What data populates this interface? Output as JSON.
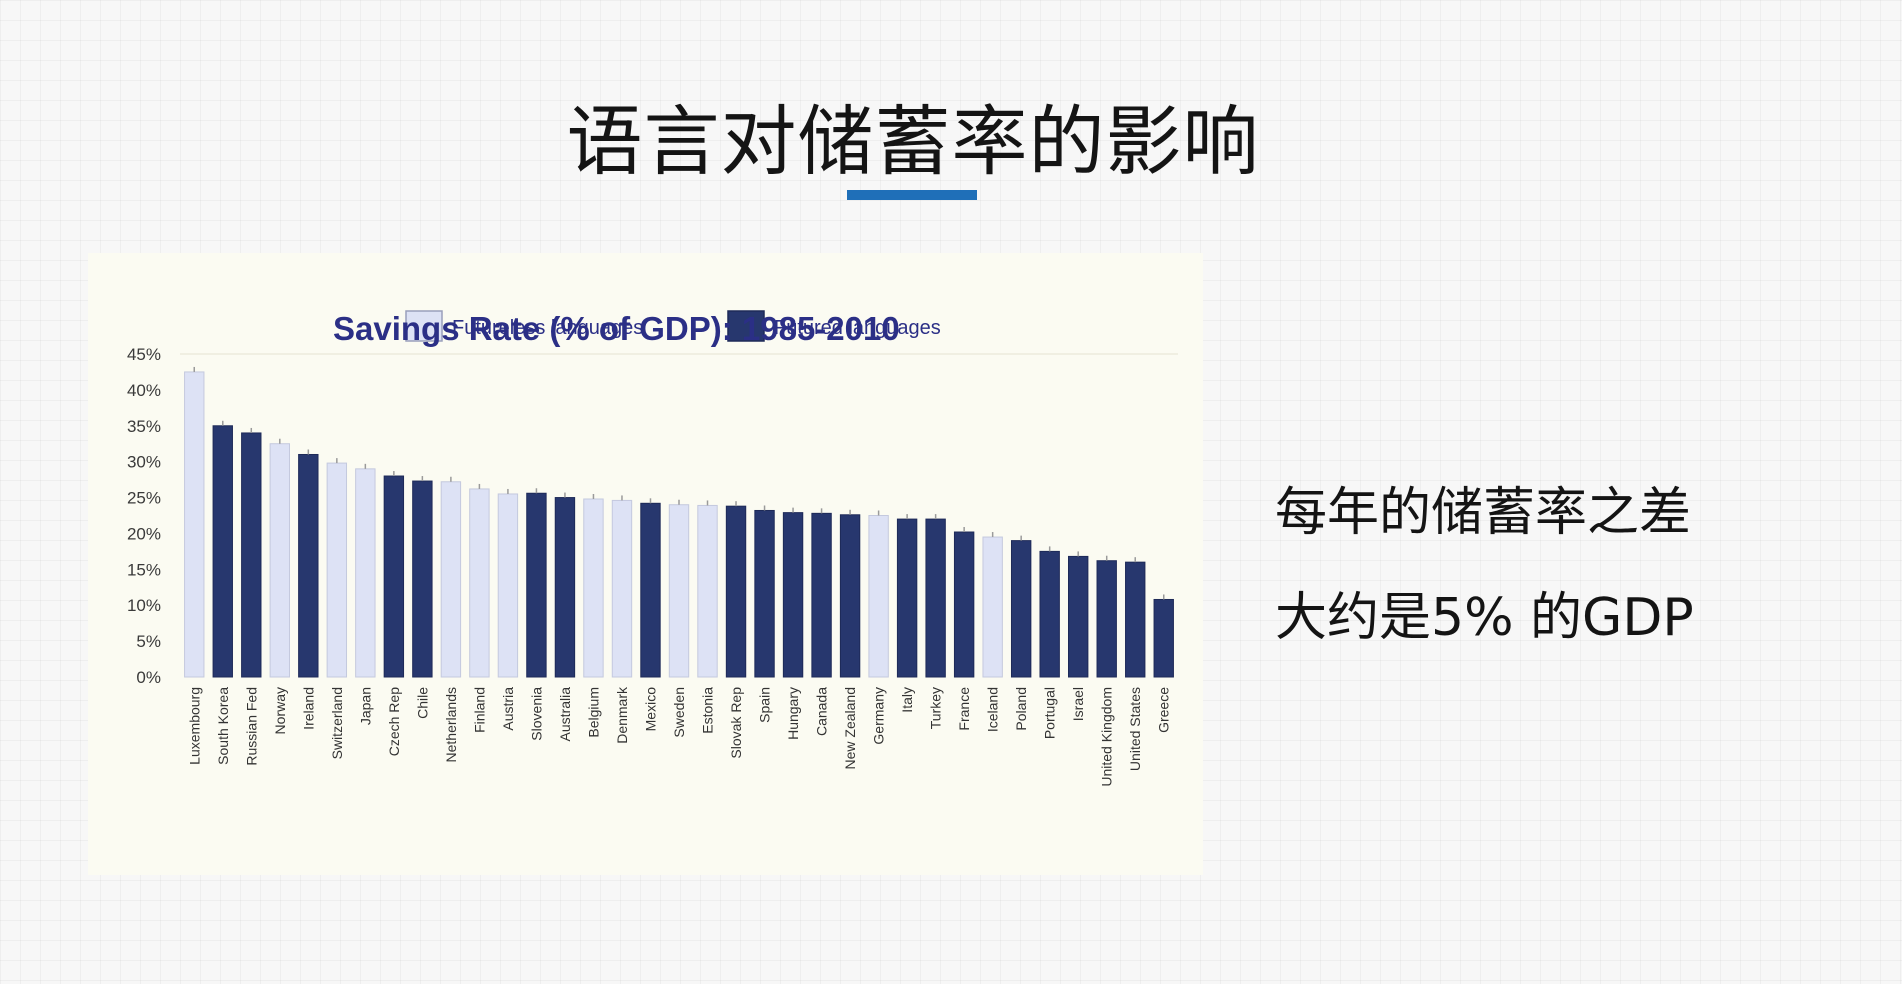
{
  "slide": {
    "title": "语言对储蓄率的影响",
    "note_line1": "每年的储蓄率之差",
    "note_line2": "大约是5% 的GDP"
  },
  "colors": {
    "futureless": "#dde2f5",
    "futured": "#27376e",
    "title_text": "#2b2f86",
    "accent_underline": "#1f6fb8"
  },
  "chart_data": {
    "type": "bar",
    "title": "Savings Rate (% of GDP): 1985-2010",
    "ylim": [
      0,
      45
    ],
    "yticks": [
      "0%",
      "5%",
      "10%",
      "15%",
      "20%",
      "25%",
      "30%",
      "35%",
      "40%",
      "45%"
    ],
    "grid": false,
    "legend_position": "top",
    "legend": [
      {
        "key": "futureless",
        "label": "Futureless languages"
      },
      {
        "key": "futured",
        "label": "Futured languages"
      }
    ],
    "categories": [
      "Luxembourg",
      "South Korea",
      "Russian Fed",
      "Norway",
      "Ireland",
      "Switzerland",
      "Japan",
      "Czech Rep",
      "Chile",
      "Netherlands",
      "Finland",
      "Austria",
      "Slovenia",
      "Australia",
      "Belgium",
      "Denmark",
      "Mexico",
      "Sweden",
      "Estonia",
      "Slovak Rep",
      "Spain",
      "Hungary",
      "Canada",
      "New Zealand",
      "Germany",
      "Italy",
      "Turkey",
      "France",
      "Iceland",
      "Poland",
      "Portugal",
      "Israel",
      "United Kingdom",
      "United States",
      "Greece"
    ],
    "groups": [
      "futureless",
      "futured",
      "futured",
      "futureless",
      "futured",
      "futureless",
      "futureless",
      "futured",
      "futured",
      "futureless",
      "futureless",
      "futureless",
      "futured",
      "futured",
      "futureless",
      "futureless",
      "futured",
      "futureless",
      "futureless",
      "futured",
      "futured",
      "futured",
      "futured",
      "futured",
      "futureless",
      "futured",
      "futured",
      "futured",
      "futureless",
      "futured",
      "futured",
      "futured",
      "futured",
      "futured",
      "futured"
    ],
    "values": [
      42.5,
      35,
      34,
      32.5,
      31,
      29.8,
      29,
      28,
      27.3,
      27.2,
      26.2,
      25.5,
      25.6,
      25,
      24.8,
      24.6,
      24.2,
      24,
      23.9,
      23.8,
      23.2,
      22.9,
      22.8,
      22.6,
      22.5,
      22,
      22,
      20.2,
      19.5,
      19,
      17.5,
      16.8,
      16.2,
      16,
      10.8
    ]
  }
}
